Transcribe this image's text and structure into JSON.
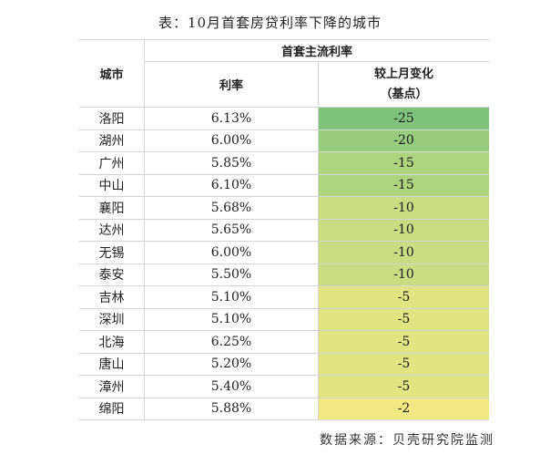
{
  "title": "表：10月首套房贷利率下降的城市",
  "table": {
    "header": {
      "city": "城市",
      "group": "首套主流利率",
      "rate": "利率",
      "change": "较上月变化\n（基点）"
    },
    "rows": [
      [
        "洛阳",
        "6.13%",
        -25
      ],
      [
        "湖州",
        "6.00%",
        -20
      ],
      [
        "广州",
        "5.85%",
        -15
      ],
      [
        "中山",
        "6.10%",
        -15
      ],
      [
        "襄阳",
        "5.68%",
        -10
      ],
      [
        "达州",
        "5.65%",
        -10
      ],
      [
        "无锡",
        "6.00%",
        -10
      ],
      [
        "泰安",
        "5.50%",
        -10
      ],
      [
        "吉林",
        "5.10%",
        -5
      ],
      [
        "深圳",
        "5.10%",
        -5
      ],
      [
        "北海",
        "6.25%",
        -5
      ],
      [
        "唐山",
        "5.20%",
        -5
      ],
      [
        "漳州",
        "5.40%",
        -5
      ],
      [
        "绵阳",
        "5.88%",
        -2
      ]
    ]
  },
  "source": "数据来源：贝壳研究院监测"
}
